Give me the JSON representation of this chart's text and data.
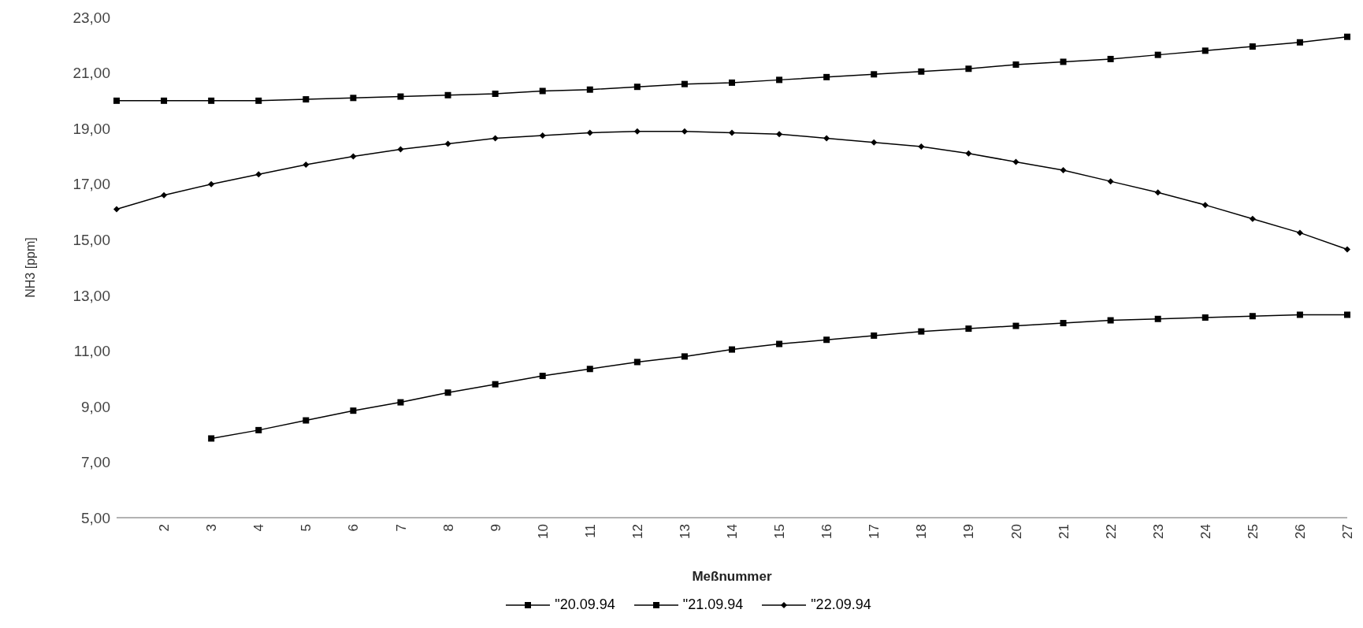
{
  "chart_data": {
    "type": "line",
    "xlabel": "Meßnummer",
    "ylabel": "NH3 [ppm]",
    "categories": [
      null,
      "2",
      "3",
      "4",
      "5",
      "6",
      "7",
      "8",
      "9",
      "10",
      "11",
      "12",
      "13",
      "14",
      "15",
      "16",
      "17",
      "18",
      "19",
      "20",
      "21",
      "22",
      "23",
      "24",
      "25",
      "26",
      "27"
    ],
    "ylim": [
      5,
      23
    ],
    "yticks": [
      {
        "value": 5,
        "label": "5,00"
      },
      {
        "value": 7,
        "label": "7,00"
      },
      {
        "value": 9,
        "label": "9,00"
      },
      {
        "value": 11,
        "label": "11,00"
      },
      {
        "value": 13,
        "label": "13,00"
      },
      {
        "value": 15,
        "label": "15,00"
      },
      {
        "value": 17,
        "label": "17,00"
      },
      {
        "value": 19,
        "label": "19,00"
      },
      {
        "value": 21,
        "label": "21,00"
      },
      {
        "value": 23,
        "label": "23,00"
      }
    ],
    "series": [
      {
        "name": "\"20.09.94",
        "color": "#000000",
        "marker": "square",
        "values": [
          20.0,
          20.0,
          20.0,
          20.0,
          20.05,
          20.1,
          20.15,
          20.2,
          20.25,
          20.35,
          20.4,
          20.5,
          20.6,
          20.65,
          20.75,
          20.85,
          20.95,
          21.05,
          21.15,
          21.3,
          21.4,
          21.5,
          21.65,
          21.8,
          21.95,
          22.1,
          22.3
        ]
      },
      {
        "name": "\"21.09.94",
        "color": "#000000",
        "marker": "square",
        "values": [
          null,
          null,
          7.85,
          8.15,
          8.5,
          8.85,
          9.15,
          9.5,
          9.8,
          10.1,
          10.35,
          10.6,
          10.8,
          11.05,
          11.25,
          11.4,
          11.55,
          11.7,
          11.8,
          11.9,
          12.0,
          12.1,
          12.15,
          12.2,
          12.25,
          12.3,
          12.3
        ]
      },
      {
        "name": "\"22.09.94",
        "color": "#000000",
        "marker": "diamond",
        "values": [
          16.1,
          16.6,
          17.0,
          17.35,
          17.7,
          18.0,
          18.25,
          18.45,
          18.65,
          18.75,
          18.85,
          18.9,
          18.9,
          18.85,
          18.8,
          18.65,
          18.5,
          18.35,
          18.1,
          17.8,
          17.5,
          17.1,
          16.7,
          16.25,
          15.75,
          15.25,
          14.65
        ]
      }
    ],
    "grid": false,
    "legend": "bottom",
    "line_style": "solid"
  }
}
